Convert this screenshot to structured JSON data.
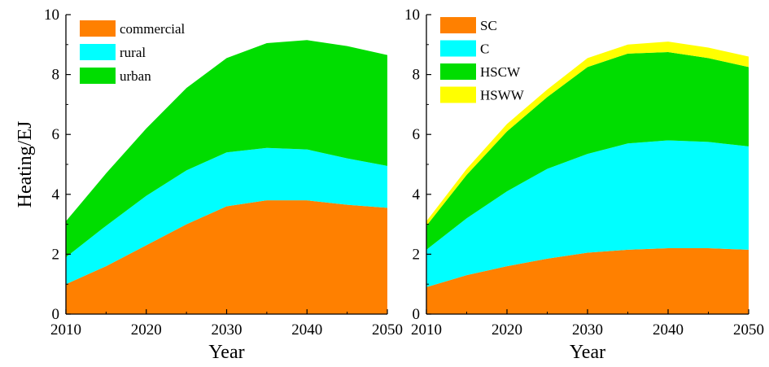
{
  "chart_data": [
    {
      "type": "area",
      "stacked": true,
      "x": [
        2010,
        2015,
        2020,
        2025,
        2030,
        2035,
        2040,
        2045,
        2050
      ],
      "xlabel": "Year",
      "ylabel": "Heating/EJ",
      "xlim": [
        2010,
        2050
      ],
      "ylim": [
        0,
        10
      ],
      "xticks": [
        "2010",
        "2020",
        "2030",
        "2040",
        "2050"
      ],
      "yticks": [
        "0",
        "2",
        "4",
        "6",
        "8",
        "10"
      ],
      "grid": false,
      "legend_position": "top-left",
      "series": [
        {
          "name": "commercial",
          "color": "#FF8000",
          "values": [
            1.0,
            1.6,
            2.3,
            3.0,
            3.6,
            3.8,
            3.8,
            3.65,
            3.55
          ]
        },
        {
          "name": "rural",
          "color": "#00FFFF",
          "values": [
            0.9,
            1.35,
            1.65,
            1.8,
            1.8,
            1.75,
            1.7,
            1.55,
            1.4
          ]
        },
        {
          "name": "urban",
          "color": "#00DD00",
          "values": [
            1.2,
            1.75,
            2.25,
            2.75,
            3.15,
            3.5,
            3.65,
            3.75,
            3.7
          ]
        }
      ]
    },
    {
      "type": "area",
      "stacked": true,
      "x": [
        2010,
        2015,
        2020,
        2025,
        2030,
        2035,
        2040,
        2045,
        2050
      ],
      "xlabel": "Year",
      "ylabel": "",
      "xlim": [
        2010,
        2050
      ],
      "ylim": [
        0,
        10
      ],
      "xticks": [
        "2010",
        "2020",
        "2030",
        "2040",
        "2050"
      ],
      "yticks": [
        "0",
        "2",
        "4",
        "6",
        "8",
        "10"
      ],
      "grid": false,
      "legend_position": "top-left",
      "series": [
        {
          "name": "SC",
          "color": "#FF8000",
          "values": [
            0.9,
            1.3,
            1.6,
            1.85,
            2.05,
            2.15,
            2.2,
            2.2,
            2.15
          ]
        },
        {
          "name": "C",
          "color": "#00FFFF",
          "values": [
            1.25,
            1.9,
            2.5,
            3.0,
            3.3,
            3.55,
            3.6,
            3.55,
            3.45
          ]
        },
        {
          "name": "HSCW",
          "color": "#00DD00",
          "values": [
            0.8,
            1.45,
            2.0,
            2.4,
            2.9,
            3.0,
            2.95,
            2.8,
            2.65
          ]
        },
        {
          "name": "HSWW",
          "color": "#FFFF00",
          "values": [
            0.15,
            0.2,
            0.25,
            0.25,
            0.3,
            0.3,
            0.35,
            0.35,
            0.35
          ]
        }
      ]
    }
  ]
}
